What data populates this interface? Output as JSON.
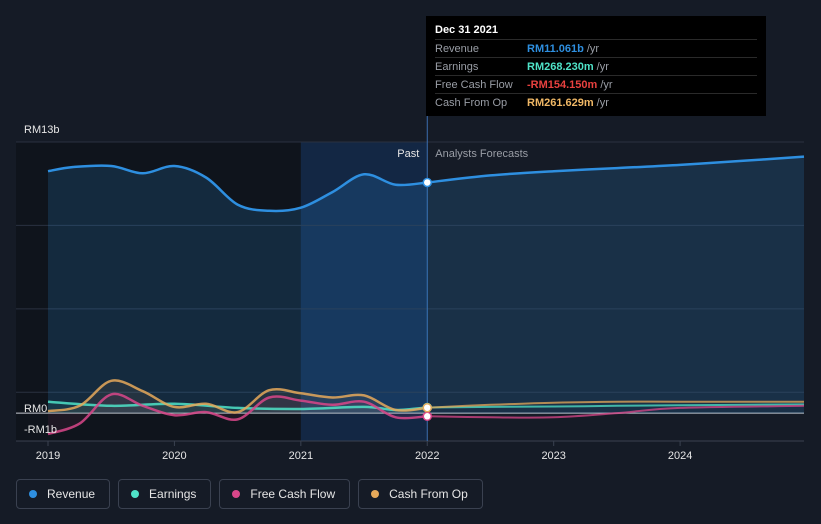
{
  "tooltip": {
    "date": "Dec 31 2021",
    "rows": [
      {
        "label": "Revenue",
        "value": "RM11.061b",
        "unit": "/yr",
        "color": "#2e8fe0"
      },
      {
        "label": "Earnings",
        "value": "RM268.230m",
        "unit": "/yr",
        "color": "#4fe3c8"
      },
      {
        "label": "Free Cash Flow",
        "value": "-RM154.150m",
        "unit": "/yr",
        "color": "#e8413f"
      },
      {
        "label": "Cash From Op",
        "value": "RM261.629m",
        "unit": "/yr",
        "color": "#f0b866"
      }
    ]
  },
  "legend": [
    {
      "label": "Revenue",
      "color": "#2e8fe0"
    },
    {
      "label": "Earnings",
      "color": "#4fe3c8"
    },
    {
      "label": "Free Cash Flow",
      "color": "#d9478a"
    },
    {
      "label": "Cash From Op",
      "color": "#e6a95a"
    }
  ],
  "chart_data": {
    "type": "line",
    "y_top_label": "RM13b",
    "y_zero_label": "RM0",
    "y_bottom_label": "-RM1b",
    "past_label": "Past",
    "forecast_label": "Analysts Forecasts",
    "ylim": [
      -1,
      13
    ],
    "xlim": [
      2019.0,
      2024.98
    ],
    "x_ticks": [
      2019,
      2020,
      2021,
      2022,
      2023,
      2024
    ],
    "divider_x": 2022.0,
    "highlight_start_x": 2021.0,
    "grid": true,
    "series": [
      {
        "name": "Revenue",
        "color": "#2e8fe0",
        "area": true,
        "past": [
          [
            2019.0,
            11.6
          ],
          [
            2019.2,
            11.8
          ],
          [
            2019.5,
            11.85
          ],
          [
            2019.75,
            11.5
          ],
          [
            2020.0,
            11.85
          ],
          [
            2020.25,
            11.3
          ],
          [
            2020.5,
            10.0
          ],
          [
            2020.75,
            9.7
          ],
          [
            2021.0,
            9.85
          ],
          [
            2021.25,
            10.6
          ],
          [
            2021.5,
            11.45
          ],
          [
            2021.75,
            10.95
          ],
          [
            2022.0,
            11.06
          ]
        ],
        "forecast": [
          [
            2022.0,
            11.06
          ],
          [
            2022.5,
            11.4
          ],
          [
            2023.0,
            11.6
          ],
          [
            2023.5,
            11.75
          ],
          [
            2024.0,
            11.9
          ],
          [
            2024.5,
            12.1
          ],
          [
            2024.98,
            12.3
          ]
        ]
      },
      {
        "name": "Earnings",
        "color": "#4fe3c8",
        "past": [
          [
            2019.0,
            0.55
          ],
          [
            2019.5,
            0.35
          ],
          [
            2020.0,
            0.45
          ],
          [
            2020.5,
            0.25
          ],
          [
            2021.0,
            0.2
          ],
          [
            2021.5,
            0.3
          ],
          [
            2021.75,
            0.15
          ],
          [
            2022.0,
            0.27
          ]
        ],
        "forecast": [
          [
            2022.0,
            0.27
          ],
          [
            2022.5,
            0.3
          ],
          [
            2023.0,
            0.32
          ],
          [
            2023.5,
            0.35
          ],
          [
            2024.0,
            0.38
          ],
          [
            2024.98,
            0.42
          ]
        ]
      },
      {
        "name": "Free Cash Flow",
        "color": "#d9478a",
        "past": [
          [
            2019.0,
            -1.0
          ],
          [
            2019.25,
            -0.5
          ],
          [
            2019.5,
            0.9
          ],
          [
            2019.75,
            0.35
          ],
          [
            2020.0,
            -0.1
          ],
          [
            2020.25,
            0.05
          ],
          [
            2020.5,
            -0.3
          ],
          [
            2020.75,
            0.75
          ],
          [
            2021.0,
            0.6
          ],
          [
            2021.25,
            0.4
          ],
          [
            2021.5,
            0.55
          ],
          [
            2021.75,
            -0.2
          ],
          [
            2022.0,
            -0.15
          ]
        ],
        "forecast": [
          [
            2022.0,
            -0.15
          ],
          [
            2022.5,
            -0.2
          ],
          [
            2023.0,
            -0.2
          ],
          [
            2023.5,
            0.0
          ],
          [
            2024.0,
            0.25
          ],
          [
            2024.98,
            0.35
          ]
        ]
      },
      {
        "name": "Cash From Op",
        "color": "#e6a95a",
        "past": [
          [
            2019.0,
            0.1
          ],
          [
            2019.25,
            0.35
          ],
          [
            2019.5,
            1.55
          ],
          [
            2019.75,
            1.05
          ],
          [
            2020.0,
            0.3
          ],
          [
            2020.25,
            0.45
          ],
          [
            2020.5,
            0.05
          ],
          [
            2020.75,
            1.1
          ],
          [
            2021.0,
            0.95
          ],
          [
            2021.25,
            0.75
          ],
          [
            2021.5,
            0.85
          ],
          [
            2021.75,
            0.15
          ],
          [
            2022.0,
            0.26
          ]
        ],
        "forecast": [
          [
            2022.0,
            0.26
          ],
          [
            2022.5,
            0.4
          ],
          [
            2023.0,
            0.5
          ],
          [
            2023.5,
            0.55
          ],
          [
            2024.0,
            0.55
          ],
          [
            2024.98,
            0.55
          ]
        ]
      }
    ]
  }
}
